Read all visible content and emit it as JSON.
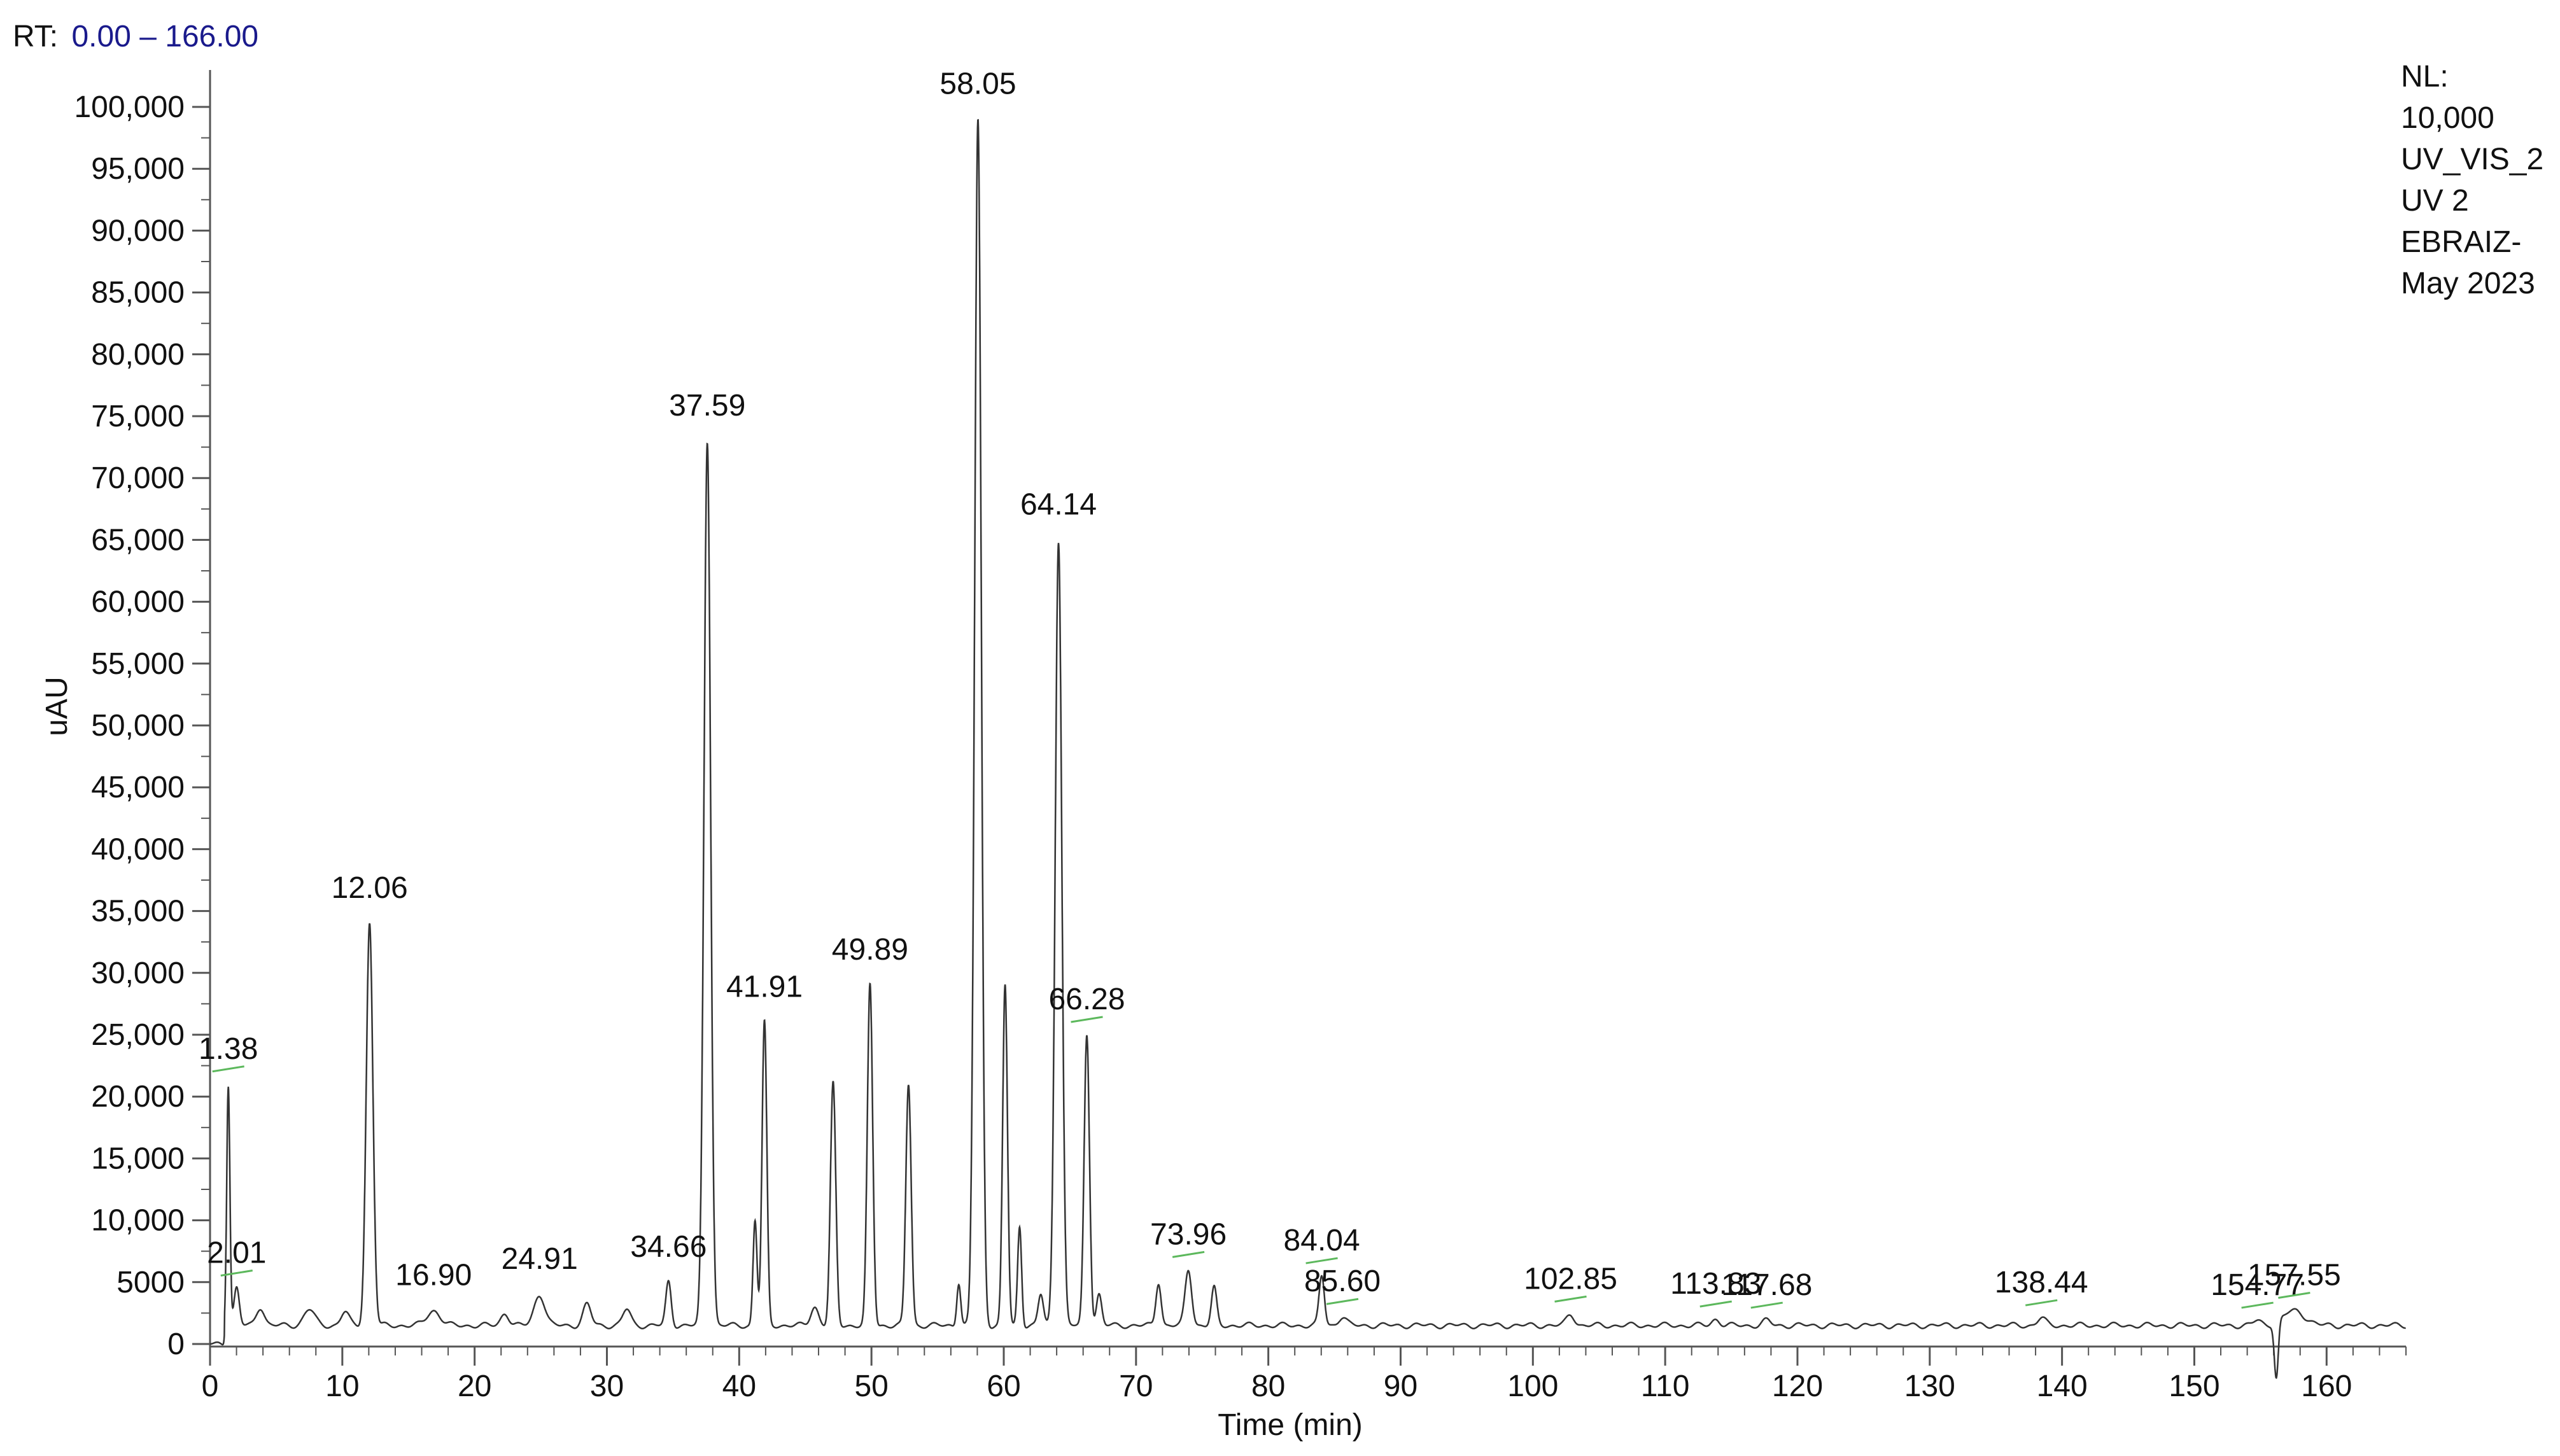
{
  "header": {
    "label": "RT:",
    "range": "0.00 – 166.00"
  },
  "info_box": [
    "NL:",
    "10,000",
    "UV_VIS_2",
    "UV 2",
    "EBRAIZ-",
    "May 2023"
  ],
  "chart_data": {
    "type": "line",
    "xlabel": "Time (min)",
    "ylabel": "uAU",
    "xlim": [
      0,
      166
    ],
    "ylim": [
      0,
      100000
    ],
    "x_ticks": [
      0,
      10,
      20,
      30,
      40,
      50,
      60,
      70,
      80,
      90,
      100,
      110,
      120,
      130,
      140,
      150,
      160
    ],
    "y_ticks": [
      0,
      5000,
      10000,
      15000,
      20000,
      25000,
      30000,
      35000,
      40000,
      45000,
      50000,
      55000,
      60000,
      65000,
      70000,
      75000,
      80000,
      85000,
      90000,
      95000,
      100000
    ],
    "y_tick_labels": [
      "0",
      "5000",
      "10,000",
      "15,000",
      "20,000",
      "25,000",
      "30,000",
      "35,000",
      "40,000",
      "45,000",
      "50,000",
      "55,000",
      "60,000",
      "65,000",
      "70,000",
      "75,000",
      "80,000",
      "85,000",
      "90,000",
      "95,000",
      "100,000"
    ],
    "grid": false,
    "baseline": 1500,
    "peaks": [
      {
        "x": 1.38,
        "y": 21000,
        "label": "1.38",
        "w": 0.12
      },
      {
        "x": 2.01,
        "y": 4500,
        "label": "2.01",
        "w": 0.2
      },
      {
        "x": 3.8,
        "y": 3000,
        "label": "",
        "w": 0.3
      },
      {
        "x": 7.5,
        "y": 2800,
        "label": "",
        "w": 0.4
      },
      {
        "x": 10.2,
        "y": 2600,
        "label": "",
        "w": 0.3
      },
      {
        "x": 12.06,
        "y": 34000,
        "label": "12.06",
        "w": 0.25
      },
      {
        "x": 16.9,
        "y": 2700,
        "label": "16.90",
        "w": 0.5
      },
      {
        "x": 22.3,
        "y": 2500,
        "label": "",
        "w": 0.3
      },
      {
        "x": 24.91,
        "y": 4000,
        "label": "24.91",
        "w": 0.4
      },
      {
        "x": 28.5,
        "y": 3200,
        "label": "",
        "w": 0.3
      },
      {
        "x": 31.5,
        "y": 2800,
        "label": "",
        "w": 0.3
      },
      {
        "x": 34.66,
        "y": 5000,
        "label": "34.66",
        "w": 0.2
      },
      {
        "x": 37.59,
        "y": 73000,
        "label": "37.59",
        "w": 0.25
      },
      {
        "x": 41.2,
        "y": 10000,
        "label": "",
        "w": 0.15
      },
      {
        "x": 41.91,
        "y": 26000,
        "label": "41.91",
        "w": 0.18
      },
      {
        "x": 45.7,
        "y": 3000,
        "label": "",
        "w": 0.3
      },
      {
        "x": 47.1,
        "y": 21000,
        "label": "",
        "w": 0.2
      },
      {
        "x": 49.89,
        "y": 29000,
        "label": "49.89",
        "w": 0.2
      },
      {
        "x": 52.8,
        "y": 21000,
        "label": "",
        "w": 0.2
      },
      {
        "x": 56.6,
        "y": 5000,
        "label": "",
        "w": 0.15
      },
      {
        "x": 58.05,
        "y": 99000,
        "label": "58.05",
        "w": 0.25
      },
      {
        "x": 60.1,
        "y": 29000,
        "label": "",
        "w": 0.18
      },
      {
        "x": 61.2,
        "y": 9500,
        "label": "",
        "w": 0.15
      },
      {
        "x": 62.8,
        "y": 4000,
        "label": "",
        "w": 0.2
      },
      {
        "x": 64.14,
        "y": 65000,
        "label": "64.14",
        "w": 0.25
      },
      {
        "x": 66.28,
        "y": 25000,
        "label": "66.28",
        "w": 0.2
      },
      {
        "x": 67.2,
        "y": 4000,
        "label": "",
        "w": 0.2
      },
      {
        "x": 71.7,
        "y": 5000,
        "label": "",
        "w": 0.2
      },
      {
        "x": 73.96,
        "y": 6000,
        "label": "73.96",
        "w": 0.25
      },
      {
        "x": 75.9,
        "y": 4500,
        "label": "",
        "w": 0.2
      },
      {
        "x": 84.04,
        "y": 5500,
        "label": "84.04",
        "w": 0.2
      },
      {
        "x": 85.6,
        "y": 2200,
        "label": "85.60",
        "w": 0.3
      },
      {
        "x": 102.85,
        "y": 2400,
        "label": "102.85",
        "w": 0.3
      },
      {
        "x": 113.83,
        "y": 2000,
        "label": "113.83",
        "w": 0.3
      },
      {
        "x": 117.68,
        "y": 1900,
        "label": "117.68",
        "w": 0.3
      },
      {
        "x": 138.44,
        "y": 2100,
        "label": "138.44",
        "w": 0.3
      },
      {
        "x": 154.77,
        "y": 1900,
        "label": "154.77",
        "w": 0.3
      },
      {
        "x": 157.55,
        "y": 2700,
        "label": "157.55",
        "w": 0.8
      }
    ],
    "dip": {
      "x": 156.2,
      "y": -3000
    }
  }
}
